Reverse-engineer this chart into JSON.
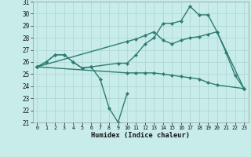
{
  "xlabel": "Humidex (Indice chaleur)",
  "x": [
    0,
    1,
    2,
    3,
    4,
    5,
    6,
    7,
    8,
    9,
    10,
    11,
    12,
    13,
    14,
    15,
    16,
    17,
    18,
    19,
    20,
    21,
    22,
    23
  ],
  "line1": [
    25.6,
    26.0,
    26.6,
    26.6,
    26.0,
    25.5,
    25.6,
    null,
    null,
    25.9,
    25.9,
    26.6,
    27.5,
    28.0,
    29.2,
    29.2,
    29.4,
    30.6,
    29.9,
    29.9,
    28.5,
    26.8,
    24.9,
    23.8
  ],
  "line2": [
    25.6,
    null,
    null,
    null,
    null,
    null,
    null,
    null,
    null,
    null,
    27.7,
    27.9,
    28.2,
    28.5,
    27.8,
    27.5,
    27.8,
    28.0,
    28.1,
    28.3,
    28.5,
    null,
    null,
    23.8
  ],
  "line3": [
    25.6,
    null,
    null,
    null,
    null,
    null,
    null,
    null,
    null,
    null,
    25.1,
    25.1,
    25.1,
    25.1,
    25.0,
    24.9,
    24.8,
    24.7,
    24.6,
    24.3,
    24.1,
    null,
    null,
    23.8
  ],
  "line4": [
    25.6,
    26.0,
    26.6,
    26.6,
    26.0,
    25.5,
    25.6,
    24.6,
    22.2,
    21.0,
    23.4,
    null,
    null,
    null,
    null,
    null,
    null,
    null,
    null,
    null,
    null,
    null,
    null,
    null
  ],
  "bg_color": "#c8ecea",
  "line_color": "#2e7d70",
  "grid_color": "#b0d8d0",
  "ylim": [
    21,
    31
  ],
  "yticks": [
    21,
    22,
    23,
    24,
    25,
    26,
    27,
    28,
    29,
    30,
    31
  ],
  "xticks": [
    0,
    1,
    2,
    3,
    4,
    5,
    6,
    7,
    8,
    9,
    10,
    11,
    12,
    13,
    14,
    15,
    16,
    17,
    18,
    19,
    20,
    21,
    22,
    23
  ],
  "marker": "D",
  "markersize": 2.2,
  "linewidth": 1.0
}
